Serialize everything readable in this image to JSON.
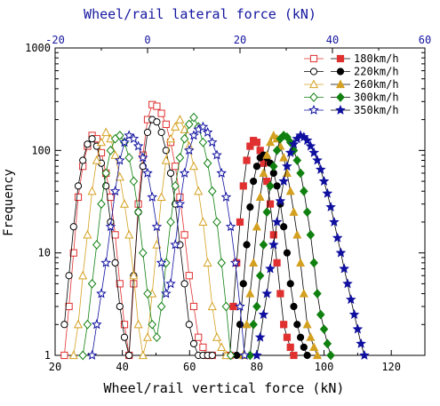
{
  "chart_data": {
    "type": "scatter",
    "title": "",
    "xlabel": "Wheel/rail vertical force (kN)",
    "x2label": "Wheel/rail lateral force (kN)",
    "ylabel": "Frequency",
    "xlim": [
      20,
      130
    ],
    "x2lim": [
      -20,
      60
    ],
    "ylim": [
      1,
      1000
    ],
    "yscale": "log",
    "grid": false,
    "legend_position": "top-right",
    "x_ticks": [
      "20",
      "40",
      "60",
      "80",
      "100",
      "120"
    ],
    "x2_ticks": [
      "-20",
      "0",
      "20",
      "40",
      "60"
    ],
    "y_ticks": [
      "1",
      "10",
      "100",
      "1000"
    ],
    "series": [
      {
        "name": "180km/h",
        "color": "#e03030",
        "marker": "square",
        "lateral": {
          "x": [
            -18,
            -17,
            -16,
            -15,
            -14,
            -13,
            -12,
            -11,
            -10,
            -9,
            -8,
            -7,
            -6,
            -5,
            -4,
            -3,
            -2,
            -1,
            0,
            1,
            2,
            3,
            4,
            5,
            6,
            7,
            8,
            9,
            10,
            11,
            12,
            13,
            14
          ],
          "y": [
            1,
            3,
            10,
            35,
            70,
            110,
            140,
            130,
            95,
            60,
            35,
            15,
            5,
            2,
            1,
            5,
            30,
            90,
            200,
            280,
            270,
            230,
            180,
            120,
            70,
            35,
            15,
            6,
            3,
            1.5,
            1.2,
            1,
            1
          ]
        },
        "vertical": {
          "x": [
            72,
            73,
            74,
            75,
            76,
            77,
            78,
            79,
            80,
            81,
            82,
            83,
            84,
            85,
            86,
            87,
            88,
            89,
            90,
            91
          ],
          "y": [
            1,
            3,
            8,
            20,
            45,
            80,
            110,
            125,
            120,
            100,
            75,
            50,
            30,
            15,
            8,
            4,
            2,
            1.5,
            1.2,
            1
          ]
        }
      },
      {
        "name": "220km/h",
        "color": "#000000",
        "marker": "circle",
        "lateral": {
          "x": [
            -18,
            -17,
            -16,
            -15,
            -14,
            -13,
            -12,
            -11,
            -10,
            -9,
            -8,
            -7,
            -6,
            -5,
            -4,
            -3,
            -2,
            -1,
            0,
            1,
            2,
            3,
            4,
            5,
            6,
            7,
            8,
            9,
            10,
            11,
            12,
            13,
            14
          ],
          "y": [
            2,
            6,
            18,
            45,
            80,
            115,
            130,
            110,
            75,
            45,
            20,
            8,
            3,
            1.5,
            1,
            6,
            25,
            70,
            150,
            200,
            190,
            150,
            100,
            60,
            30,
            12,
            5,
            2,
            1.3,
            1,
            1,
            1,
            1
          ]
        },
        "vertical": {
          "x": [
            74,
            75,
            76,
            77,
            78,
            79,
            80,
            81,
            82,
            83,
            84,
            85,
            86,
            87,
            88,
            89,
            90,
            91,
            92,
            93,
            94,
            95
          ],
          "y": [
            1,
            2,
            5,
            12,
            28,
            50,
            70,
            85,
            90,
            85,
            75,
            60,
            45,
            30,
            18,
            10,
            5,
            3,
            2,
            1.5,
            1.2,
            1
          ]
        }
      },
      {
        "name": "260km/h",
        "color": "#d4a020",
        "marker": "triangle",
        "lateral": {
          "x": [
            -16,
            -15,
            -14,
            -13,
            -12,
            -11,
            -10,
            -9,
            -8,
            -7,
            -6,
            -5,
            -4,
            -3,
            -2,
            -1,
            0,
            1,
            2,
            3,
            4,
            5,
            6,
            7,
            8,
            9,
            10,
            11,
            12,
            13,
            14,
            15,
            16,
            17
          ],
          "y": [
            1,
            2,
            6,
            15,
            40,
            80,
            120,
            150,
            130,
            90,
            55,
            30,
            15,
            6,
            2,
            1,
            1.5,
            4,
            12,
            35,
            80,
            130,
            170,
            200,
            160,
            110,
            70,
            40,
            20,
            8,
            3,
            1.5,
            1.2,
            1
          ]
        },
        "vertical": {
          "x": [
            76,
            77,
            78,
            79,
            80,
            81,
            82,
            83,
            84,
            85,
            86,
            87,
            88,
            89,
            90,
            91,
            92,
            93,
            94,
            95,
            96,
            97,
            98
          ],
          "y": [
            1,
            2,
            4,
            8,
            18,
            35,
            60,
            90,
            120,
            140,
            130,
            110,
            85,
            60,
            40,
            25,
            15,
            8,
            4,
            2,
            1.5,
            1.2,
            1
          ]
        }
      },
      {
        "name": "300km/h",
        "color": "#108010",
        "marker": "diamond",
        "lateral": {
          "x": [
            -14,
            -13,
            -12,
            -11,
            -10,
            -9,
            -8,
            -7,
            -6,
            -5,
            -4,
            -3,
            -2,
            -1,
            0,
            1,
            2,
            3,
            4,
            5,
            6,
            7,
            8,
            9,
            10,
            11,
            12,
            13,
            14,
            15,
            16,
            17,
            18
          ],
          "y": [
            1,
            2,
            5,
            12,
            30,
            60,
            100,
            130,
            140,
            120,
            85,
            50,
            25,
            10,
            4,
            2,
            1.5,
            3,
            8,
            20,
            45,
            85,
            130,
            180,
            210,
            170,
            120,
            75,
            40,
            20,
            8,
            3,
            1
          ]
        },
        "vertical": {
          "x": [
            78,
            79,
            80,
            81,
            82,
            83,
            84,
            85,
            86,
            87,
            88,
            89,
            90,
            91,
            92,
            93,
            94,
            95,
            96,
            97,
            98,
            99,
            100,
            101,
            102
          ],
          "y": [
            1,
            2,
            3,
            6,
            12,
            25,
            45,
            70,
            100,
            130,
            140,
            135,
            120,
            100,
            80,
            60,
            40,
            25,
            15,
            8,
            4,
            2.5,
            1.8,
            1.3,
            1
          ]
        }
      },
      {
        "name": "350km/h",
        "color": "#1010a0",
        "marker": "star",
        "lateral": {
          "x": [
            -12,
            -11,
            -10,
            -9,
            -8,
            -7,
            -6,
            -5,
            -4,
            -3,
            -2,
            -1,
            0,
            1,
            2,
            3,
            4,
            5,
            6,
            7,
            8,
            9,
            10,
            11,
            12,
            13,
            14,
            15,
            16,
            17,
            18,
            19,
            20,
            21
          ],
          "y": [
            1,
            2,
            4,
            8,
            18,
            40,
            80,
            120,
            140,
            130,
            110,
            85,
            60,
            35,
            18,
            8,
            4,
            5,
            12,
            30,
            60,
            100,
            140,
            160,
            170,
            150,
            120,
            90,
            60,
            35,
            18,
            8,
            3,
            1
          ]
        },
        "vertical": {
          "x": [
            80,
            81,
            82,
            83,
            84,
            85,
            86,
            87,
            88,
            89,
            90,
            91,
            92,
            93,
            94,
            95,
            96,
            97,
            98,
            99,
            100,
            101,
            102,
            103,
            104,
            105,
            106,
            107,
            108,
            109,
            110,
            111,
            112
          ],
          "y": [
            1,
            1.5,
            2.5,
            4,
            7,
            12,
            20,
            32,
            50,
            70,
            95,
            115,
            130,
            140,
            135,
            125,
            110,
            95,
            80,
            65,
            50,
            38,
            28,
            20,
            14,
            10,
            7,
            5,
            3.5,
            2.5,
            1.8,
            1.3,
            1
          ]
        }
      }
    ]
  }
}
